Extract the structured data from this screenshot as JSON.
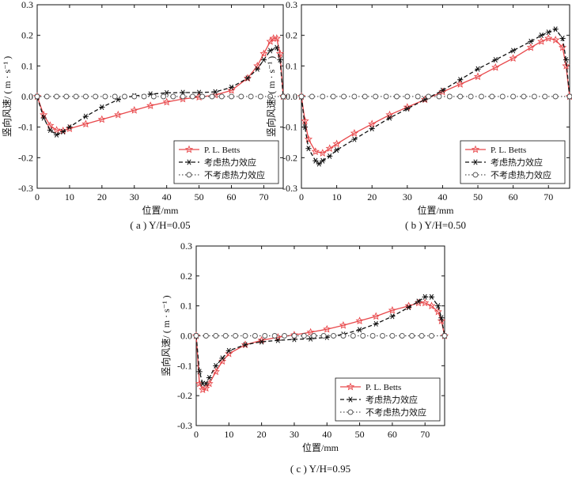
{
  "chart_data": [
    {
      "type": "line",
      "caption": "( a ) Y/H=0.05",
      "xlabel": "位置/mm",
      "ylabel": "竖向风速/ ( m · s⁻¹ )",
      "xlim": [
        0,
        76
      ],
      "ylim": [
        -0.3,
        0.3
      ],
      "xticks": [
        "0",
        "10",
        "20",
        "30",
        "40",
        "50",
        "60",
        "70"
      ],
      "yticks": [
        "-0.3",
        "-0.2",
        "-0.1",
        "0.0",
        "0.1",
        "0.2",
        "0.3"
      ],
      "legend_position": "bottom-right",
      "series": [
        {
          "name": "P. L. Betts",
          "color": "#e8474a",
          "style": "solid",
          "marker": "star",
          "x": [
            0,
            2,
            4,
            6,
            8,
            10,
            15,
            20,
            25,
            30,
            35,
            40,
            45,
            50,
            55,
            60,
            65,
            68,
            70,
            72,
            73,
            74,
            75,
            76
          ],
          "y": [
            0.0,
            -0.06,
            -0.095,
            -0.11,
            -0.112,
            -0.105,
            -0.09,
            -0.075,
            -0.06,
            -0.045,
            -0.03,
            -0.018,
            -0.008,
            -0.002,
            0.005,
            0.02,
            0.06,
            0.1,
            0.14,
            0.18,
            0.19,
            0.19,
            0.14,
            0.0
          ]
        },
        {
          "name": "考虑热力效应",
          "color": "#111111",
          "style": "dashed",
          "marker": "asterisk",
          "x": [
            0,
            2,
            4,
            6,
            8,
            10,
            15,
            20,
            25,
            30,
            35,
            40,
            45,
            50,
            55,
            60,
            65,
            68,
            70,
            72,
            74,
            75,
            76
          ],
          "y": [
            0.0,
            -0.07,
            -0.11,
            -0.125,
            -0.115,
            -0.1,
            -0.065,
            -0.035,
            -0.01,
            0.002,
            0.008,
            0.012,
            0.013,
            0.013,
            0.015,
            0.03,
            0.06,
            0.09,
            0.12,
            0.15,
            0.16,
            0.12,
            0.0
          ]
        },
        {
          "name": "不考虑热力效应",
          "color": "#555555",
          "style": "dotted",
          "marker": "circle",
          "x": [
            0,
            3,
            6,
            9,
            12,
            15,
            18,
            21,
            24,
            27,
            30,
            33,
            36,
            39,
            42,
            45,
            48,
            51,
            54,
            57,
            60,
            63,
            66,
            69,
            72,
            76
          ],
          "y": [
            0,
            0,
            0,
            0,
            0,
            0,
            0,
            0,
            0,
            0,
            0,
            0,
            0,
            0,
            0,
            0,
            0,
            0,
            0,
            0,
            0,
            0,
            0,
            0,
            0,
            0
          ]
        }
      ]
    },
    {
      "type": "line",
      "caption": "( b ) Y/H=0.50",
      "xlabel": "位置/mm",
      "ylabel": "竖向风速/ ( m · s⁻¹ )",
      "xlim": [
        0,
        76
      ],
      "ylim": [
        -0.3,
        0.3
      ],
      "xticks": [
        "0",
        "10",
        "20",
        "30",
        "40",
        "50",
        "60",
        "70"
      ],
      "yticks": [
        "-0.3",
        "-0.2",
        "-0.1",
        "0.0",
        "0.1",
        "0.2",
        "0.3"
      ],
      "legend_position": "bottom-right",
      "series": [
        {
          "name": "P. L. Betts",
          "color": "#e8474a",
          "style": "solid",
          "marker": "star",
          "x": [
            0,
            1,
            2,
            4,
            6,
            8,
            10,
            15,
            20,
            25,
            30,
            35,
            40,
            45,
            50,
            55,
            60,
            65,
            68,
            70,
            72,
            74,
            75,
            76
          ],
          "y": [
            0.0,
            -0.08,
            -0.14,
            -0.18,
            -0.185,
            -0.17,
            -0.155,
            -0.12,
            -0.09,
            -0.06,
            -0.035,
            -0.01,
            0.015,
            0.04,
            0.065,
            0.095,
            0.125,
            0.16,
            0.18,
            0.19,
            0.185,
            0.16,
            0.1,
            0.0
          ]
        },
        {
          "name": "考虑热力效应",
          "color": "#111111",
          "style": "dashed",
          "marker": "asterisk",
          "x": [
            0,
            1,
            2,
            4,
            5,
            6,
            8,
            10,
            15,
            20,
            25,
            30,
            35,
            40,
            45,
            50,
            55,
            60,
            65,
            68,
            70,
            72,
            74,
            75,
            76
          ],
          "y": [
            0.0,
            -0.1,
            -0.17,
            -0.21,
            -0.22,
            -0.21,
            -0.195,
            -0.175,
            -0.14,
            -0.105,
            -0.07,
            -0.04,
            -0.01,
            0.02,
            0.055,
            0.09,
            0.12,
            0.15,
            0.18,
            0.2,
            0.21,
            0.22,
            0.19,
            0.12,
            0.0
          ]
        },
        {
          "name": "不考虑热力效应",
          "color": "#555555",
          "style": "dotted",
          "marker": "circle",
          "x": [
            0,
            3,
            6,
            9,
            12,
            15,
            18,
            21,
            24,
            27,
            30,
            33,
            36,
            39,
            42,
            45,
            48,
            51,
            54,
            57,
            60,
            63,
            66,
            69,
            72,
            76
          ],
          "y": [
            0,
            0,
            0,
            0,
            0,
            0,
            0,
            0,
            0,
            0,
            0,
            0,
            0,
            0,
            0,
            0,
            0,
            0,
            0,
            0,
            0,
            0,
            0,
            0,
            0,
            0
          ]
        }
      ]
    },
    {
      "type": "line",
      "caption": "( c ) Y/H=0.95",
      "xlabel": "位置/mm",
      "ylabel": "竖向风速/ ( m · s⁻¹ )",
      "xlim": [
        0,
        76
      ],
      "ylim": [
        -0.3,
        0.3
      ],
      "xticks": [
        "0",
        "10",
        "20",
        "30",
        "40",
        "50",
        "60",
        "70"
      ],
      "yticks": [
        "-0.3",
        "-0.2",
        "-0.1",
        "0.0",
        "0.1",
        "0.2",
        "0.3"
      ],
      "legend_position": "bottom-right",
      "series": [
        {
          "name": "P. L. Betts",
          "color": "#e8474a",
          "style": "solid",
          "marker": "star",
          "x": [
            0,
            1,
            2,
            3,
            4,
            6,
            8,
            10,
            15,
            20,
            25,
            30,
            35,
            40,
            45,
            50,
            55,
            60,
            65,
            68,
            70,
            72,
            74,
            75,
            76
          ],
          "y": [
            0.0,
            -0.16,
            -0.18,
            -0.175,
            -0.16,
            -0.12,
            -0.085,
            -0.06,
            -0.03,
            -0.015,
            -0.005,
            0.003,
            0.012,
            0.022,
            0.035,
            0.05,
            0.065,
            0.085,
            0.1,
            0.11,
            0.11,
            0.1,
            0.08,
            0.05,
            0.0
          ]
        },
        {
          "name": "考虑热力效应",
          "color": "#111111",
          "style": "dashed",
          "marker": "asterisk",
          "x": [
            0,
            1,
            2,
            3,
            4,
            6,
            8,
            10,
            15,
            20,
            25,
            30,
            35,
            40,
            45,
            50,
            55,
            60,
            65,
            68,
            70,
            72,
            74,
            75,
            76
          ],
          "y": [
            0.0,
            -0.12,
            -0.16,
            -0.16,
            -0.14,
            -0.1,
            -0.075,
            -0.05,
            -0.03,
            -0.02,
            -0.015,
            -0.012,
            -0.01,
            -0.005,
            0.005,
            0.02,
            0.04,
            0.065,
            0.095,
            0.115,
            0.13,
            0.13,
            0.1,
            0.06,
            0.0
          ]
        },
        {
          "name": "不考虑热力效应",
          "color": "#555555",
          "style": "dotted",
          "marker": "circle",
          "x": [
            0,
            3,
            6,
            9,
            12,
            15,
            18,
            21,
            24,
            27,
            30,
            33,
            36,
            39,
            42,
            45,
            48,
            51,
            54,
            57,
            60,
            63,
            66,
            69,
            72,
            76
          ],
          "y": [
            0,
            0,
            0,
            0,
            0,
            0,
            0,
            0,
            0,
            0,
            0,
            0,
            0,
            0,
            0,
            0,
            0,
            0,
            0,
            0,
            0,
            0,
            0,
            0,
            0,
            0
          ]
        }
      ]
    }
  ]
}
